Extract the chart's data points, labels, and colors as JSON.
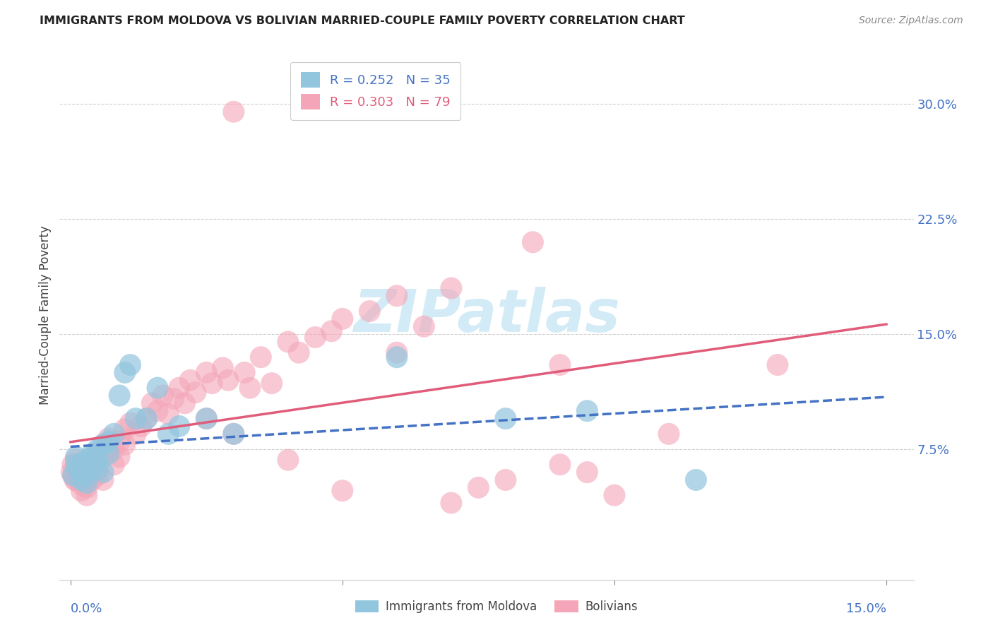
{
  "title": "IMMIGRANTS FROM MOLDOVA VS BOLIVIAN MARRIED-COUPLE FAMILY POVERTY CORRELATION CHART",
  "source": "Source: ZipAtlas.com",
  "ylabel": "Married-Couple Family Poverty",
  "ytick_vals": [
    0.075,
    0.15,
    0.225,
    0.3
  ],
  "ytick_labels": [
    "7.5%",
    "15.0%",
    "22.5%",
    "30.0%"
  ],
  "xlim": [
    -0.002,
    0.155
  ],
  "ylim": [
    -0.01,
    0.335
  ],
  "xtick_vals": [
    0.0,
    0.05,
    0.1,
    0.15
  ],
  "moldova_color": "#92c5de",
  "bolivian_color": "#f4a6b8",
  "moldova_line_color": "#4472c4",
  "bolivian_line_color": "#e05c7a",
  "background_color": "#ffffff",
  "grid_color": "#d0d0d0",
  "ytick_color": "#4472c4",
  "xtick_label_color": "#4472c4",
  "watermark_color": "#cce8f5",
  "moldova_x": [
    0.0005,
    0.001,
    0.001,
    0.0015,
    0.002,
    0.002,
    0.002,
    0.003,
    0.003,
    0.003,
    0.004,
    0.004,
    0.004,
    0.005,
    0.005,
    0.005,
    0.006,
    0.006,
    0.007,
    0.007,
    0.008,
    0.009,
    0.01,
    0.011,
    0.012,
    0.014,
    0.016,
    0.018,
    0.02,
    0.025,
    0.03,
    0.06,
    0.08,
    0.095,
    0.115
  ],
  "moldova_y": [
    0.058,
    0.065,
    0.07,
    0.062,
    0.065,
    0.055,
    0.06,
    0.068,
    0.058,
    0.053,
    0.072,
    0.065,
    0.07,
    0.075,
    0.068,
    0.062,
    0.078,
    0.06,
    0.08,
    0.072,
    0.085,
    0.11,
    0.125,
    0.13,
    0.095,
    0.095,
    0.115,
    0.085,
    0.09,
    0.095,
    0.085,
    0.135,
    0.095,
    0.1,
    0.055
  ],
  "bolivian_x": [
    0.0002,
    0.0004,
    0.0005,
    0.0008,
    0.001,
    0.001,
    0.001,
    0.0015,
    0.002,
    0.002,
    0.002,
    0.002,
    0.003,
    0.003,
    0.003,
    0.003,
    0.004,
    0.004,
    0.004,
    0.005,
    0.005,
    0.005,
    0.006,
    0.006,
    0.006,
    0.007,
    0.007,
    0.008,
    0.008,
    0.009,
    0.009,
    0.01,
    0.01,
    0.011,
    0.012,
    0.013,
    0.014,
    0.015,
    0.016,
    0.017,
    0.018,
    0.019,
    0.02,
    0.021,
    0.022,
    0.023,
    0.025,
    0.026,
    0.028,
    0.029,
    0.03,
    0.032,
    0.033,
    0.035,
    0.037,
    0.04,
    0.042,
    0.045,
    0.048,
    0.05,
    0.055,
    0.06,
    0.065,
    0.07,
    0.075,
    0.08,
    0.085,
    0.09,
    0.095,
    0.1,
    0.025,
    0.03,
    0.04,
    0.05,
    0.06,
    0.07,
    0.09,
    0.11,
    0.13
  ],
  "bolivian_y": [
    0.06,
    0.065,
    0.058,
    0.055,
    0.06,
    0.068,
    0.055,
    0.058,
    0.065,
    0.058,
    0.052,
    0.048,
    0.062,
    0.055,
    0.05,
    0.045,
    0.068,
    0.06,
    0.055,
    0.072,
    0.065,
    0.058,
    0.078,
    0.07,
    0.055,
    0.082,
    0.075,
    0.075,
    0.065,
    0.08,
    0.07,
    0.088,
    0.078,
    0.092,
    0.085,
    0.09,
    0.095,
    0.105,
    0.1,
    0.11,
    0.098,
    0.108,
    0.115,
    0.105,
    0.12,
    0.112,
    0.125,
    0.118,
    0.128,
    0.12,
    0.295,
    0.125,
    0.115,
    0.135,
    0.118,
    0.145,
    0.138,
    0.148,
    0.152,
    0.16,
    0.165,
    0.175,
    0.155,
    0.18,
    0.05,
    0.055,
    0.21,
    0.13,
    0.06,
    0.045,
    0.095,
    0.085,
    0.068,
    0.048,
    0.138,
    0.04,
    0.065,
    0.085,
    0.13
  ]
}
